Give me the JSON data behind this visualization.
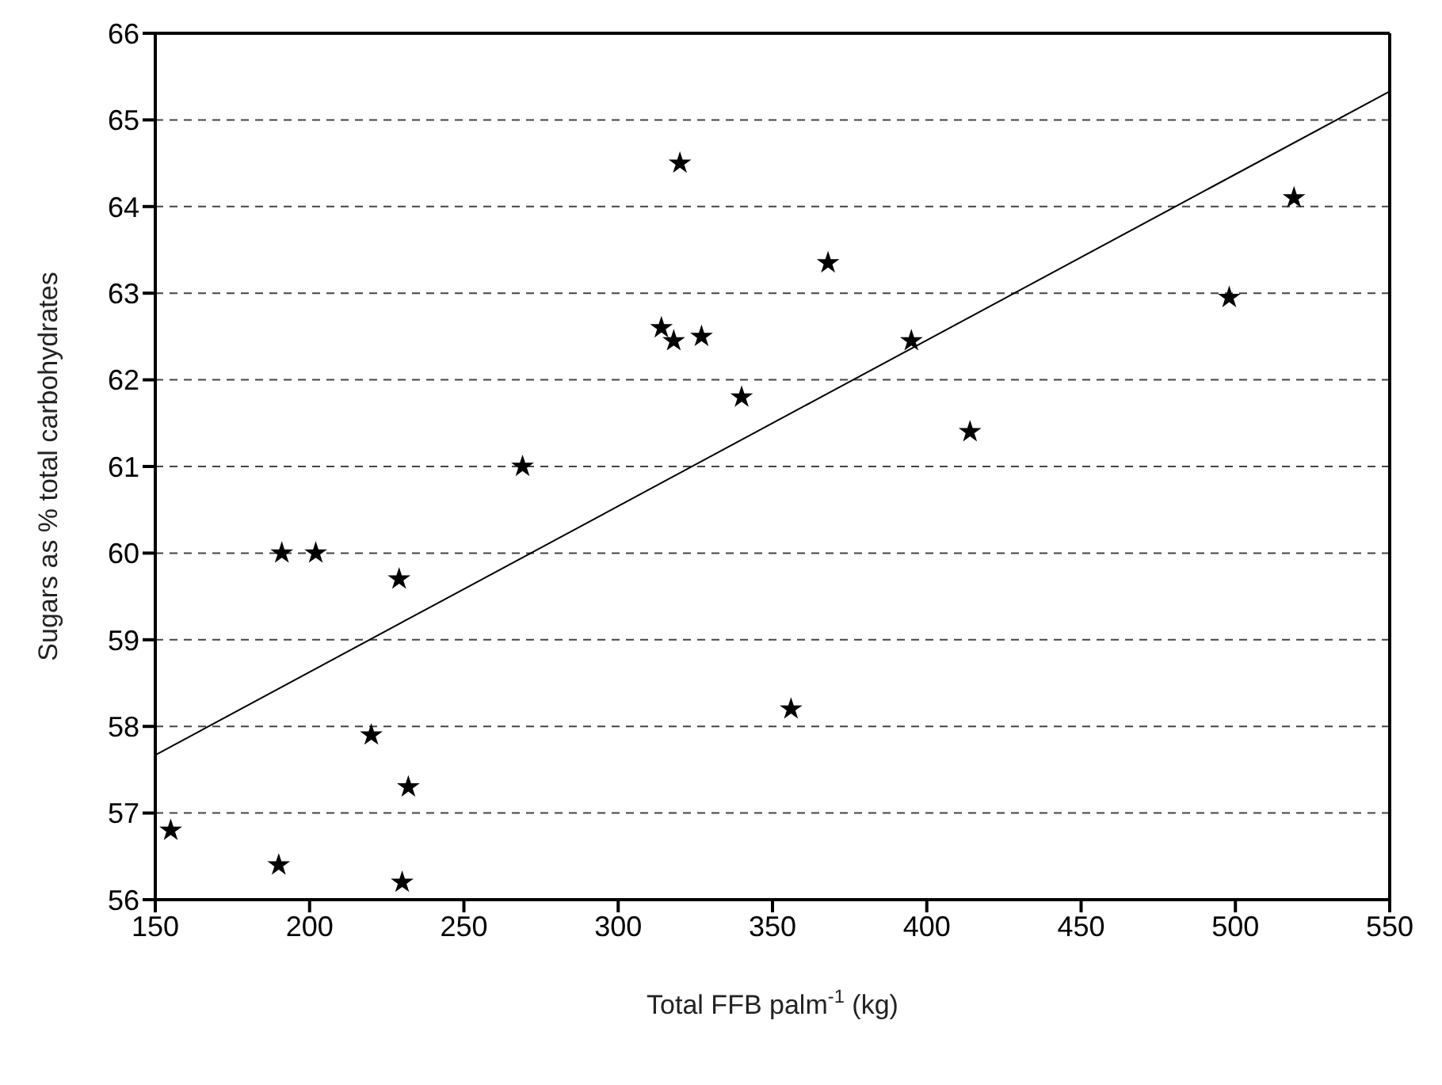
{
  "chart_data": {
    "type": "scatter",
    "xlabel": "Total FFB palm$^{-1}$ (kg)",
    "ylabel": "Sugars as % total carbohydrates",
    "xlim": [
      150,
      550
    ],
    "xticks": [
      150,
      200,
      250,
      300,
      350,
      400,
      450,
      500,
      550
    ],
    "ylim": [
      56,
      66
    ],
    "yticks": [
      56,
      57,
      58,
      59,
      60,
      61,
      62,
      63,
      64,
      65,
      66
    ],
    "grid": "y",
    "marker": "star",
    "series": [
      {
        "color": "#000000",
        "x": [
          155,
          190,
          230,
          220,
          232,
          191,
          202,
          229,
          269,
          314,
          318,
          327,
          320,
          340,
          368,
          356,
          395,
          414,
          498,
          519
        ],
        "values": [
          56.8,
          56.4,
          56.2,
          57.9,
          57.3,
          60.0,
          60.0,
          59.7,
          61.0,
          62.6,
          62.45,
          62.5,
          64.5,
          61.8,
          63.35,
          58.2,
          62.45,
          61.4,
          62.95,
          64.1
        ]
      },
      {
        "type": "line",
        "color": "#000000",
        "x": [
          150,
          550
        ],
        "values": [
          57.67,
          65.33
        ],
        "marker": "none"
      }
    ]
  }
}
